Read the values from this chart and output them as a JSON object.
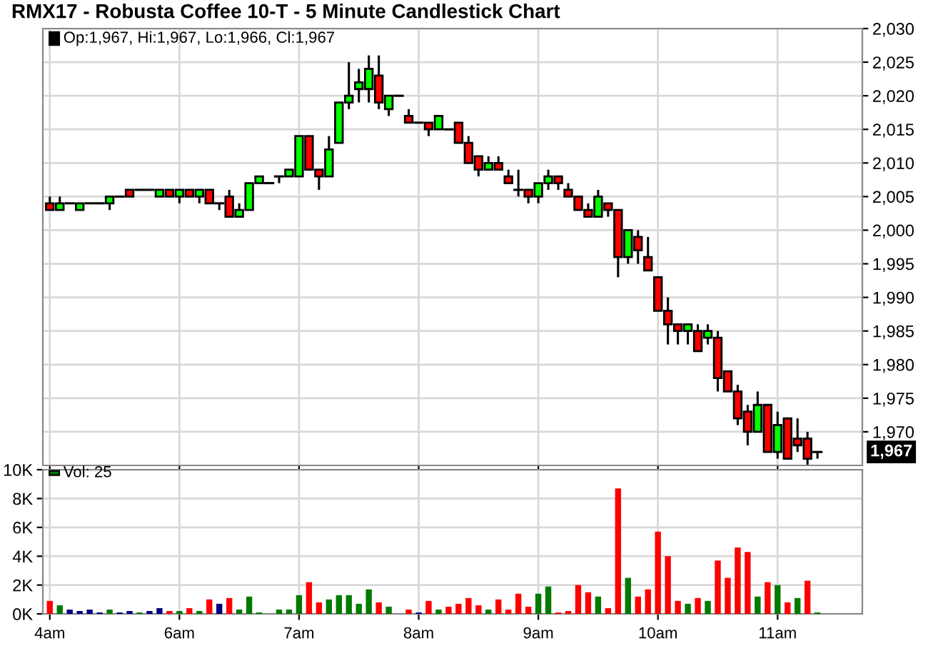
{
  "chart_data": [
    {
      "type": "candlestick",
      "title": "RMX17 - Robusta Coffee 10-T - 5 Minute Candlestick Chart",
      "categories": [
        null,
        null,
        null,
        null,
        null,
        null,
        null,
        null,
        null,
        null,
        null,
        null,
        null,
        null,
        null,
        null,
        null,
        null,
        null,
        null,
        null,
        null,
        null,
        null,
        null,
        null,
        null,
        null,
        null,
        null,
        null,
        null,
        null,
        null,
        null,
        null,
        null,
        null,
        null,
        null,
        null,
        null,
        null,
        null,
        null,
        null,
        null,
        null,
        null,
        null,
        null,
        null,
        null,
        null,
        null,
        null,
        null,
        null,
        null,
        null,
        null,
        null,
        null,
        null,
        null,
        null,
        null,
        null,
        null,
        null,
        null,
        null,
        null,
        null,
        null,
        null,
        null,
        null
      ],
      "ohlc": [
        [
          2004,
          2005,
          2003,
          2003
        ],
        [
          2003,
          2005,
          2003,
          2004
        ],
        [
          2004,
          2004,
          2004,
          2004
        ],
        [
          2003,
          2004,
          2003,
          2004
        ],
        [
          2004,
          2004,
          2004,
          2004
        ],
        [
          2004,
          2004,
          2004,
          2004
        ],
        [
          2004,
          2005,
          2003,
          2005
        ],
        [
          2005,
          2005,
          2005,
          2005
        ],
        [
          2006,
          2006,
          2005,
          2005
        ],
        [
          2006,
          2006,
          2006,
          2006
        ],
        [
          2006,
          2006,
          2006,
          2006
        ],
        [
          2005,
          2006,
          2005,
          2006
        ],
        [
          2006,
          2006,
          2005,
          2005
        ],
        [
          2005,
          2006,
          2004,
          2006
        ],
        [
          2006,
          2006,
          2005,
          2005
        ],
        [
          2005,
          2006,
          2004,
          2006
        ],
        [
          2006,
          2006,
          2004,
          2004
        ],
        [
          2004,
          2004,
          2003,
          2004
        ],
        [
          2005,
          2006,
          2002,
          2002
        ],
        [
          2002,
          2004,
          2002,
          2003
        ],
        [
          2003,
          2007,
          2003,
          2007
        ],
        [
          2007,
          2008,
          2007,
          2008
        ],
        [
          2007,
          2007,
          2007,
          2007
        ],
        [
          2008,
          2008,
          2007,
          2008
        ],
        [
          2008,
          2009,
          2008,
          2009
        ],
        [
          2008,
          2014,
          2008,
          2014
        ],
        [
          2014,
          2014,
          2009,
          2009
        ],
        [
          2009,
          2009,
          2006,
          2008
        ],
        [
          2008,
          2014,
          2008,
          2012
        ],
        [
          2013,
          2019,
          2013,
          2019
        ],
        [
          2019,
          2025,
          2018,
          2020
        ],
        [
          2021,
          2024,
          2019,
          2022
        ],
        [
          2021,
          2026,
          2019,
          2024
        ],
        [
          2023,
          2026,
          2018,
          2019
        ],
        [
          2018,
          2020,
          2017,
          2020
        ],
        [
          2020,
          2020,
          2020,
          2020
        ],
        [
          2017,
          2018,
          2016,
          2016
        ],
        [
          2016,
          2016,
          2016,
          2016
        ],
        [
          2016,
          2016,
          2014,
          2015
        ],
        [
          2015,
          2017,
          2015,
          2017
        ],
        [
          2015,
          2015,
          2015,
          2015
        ],
        [
          2016,
          2016,
          2013,
          2013
        ],
        [
          2013,
          2014,
          2010,
          2010
        ],
        [
          2011,
          2011,
          2008,
          2009
        ],
        [
          2009,
          2011,
          2009,
          2010
        ],
        [
          2010,
          2011,
          2009,
          2009
        ],
        [
          2008,
          2009,
          2007,
          2007
        ],
        [
          2006,
          2009,
          2005,
          2006
        ],
        [
          2006,
          2006,
          2004,
          2005
        ],
        [
          2005,
          2007,
          2004,
          2007
        ],
        [
          2007,
          2009,
          2006,
          2008
        ],
        [
          2008,
          2008,
          2006,
          2007
        ],
        [
          2006,
          2007,
          2005,
          2005
        ],
        [
          2005,
          2005,
          2003,
          2003
        ],
        [
          2003,
          2004,
          2002,
          2002
        ],
        [
          2002,
          2006,
          2002,
          2005
        ],
        [
          2004,
          2004,
          2002,
          2003
        ],
        [
          2003,
          2003,
          1993,
          1996
        ],
        [
          1996,
          2000,
          1995,
          2000
        ],
        [
          1999,
          2000,
          1995,
          1997
        ],
        [
          1996,
          1999,
          1994,
          1994
        ],
        [
          1993,
          1993,
          1988,
          1988
        ],
        [
          1988,
          1990,
          1983,
          1986
        ],
        [
          1986,
          1986,
          1983,
          1985
        ],
        [
          1985,
          1986,
          1983,
          1986
        ],
        [
          1985,
          1986,
          1982,
          1982
        ],
        [
          1984,
          1986,
          1983,
          1985
        ],
        [
          1984,
          1985,
          1976,
          1978
        ],
        [
          1979,
          1979,
          1976,
          1976
        ],
        [
          1976,
          1977,
          1971,
          1972
        ],
        [
          1973,
          1974,
          1968,
          1970
        ],
        [
          1970,
          1976,
          1970,
          1974
        ],
        [
          1974,
          1974,
          1967,
          1967
        ],
        [
          1967,
          1973,
          1966,
          1971
        ],
        [
          1972,
          1972,
          1966,
          1966
        ],
        [
          1969,
          1972,
          1967,
          1968
        ],
        [
          1969,
          1970,
          1965,
          1966
        ],
        [
          1967,
          1967,
          1966,
          1967
        ]
      ],
      "colors": [
        "#ff0000",
        "#00ff00",
        "#000000",
        "#00ff00",
        "#000000",
        "#000000",
        "#00ff00",
        "#000000",
        "#ff0000",
        "#000000",
        "#000000",
        "#00ff00",
        "#ff0000",
        "#00ff00",
        "#ff0000",
        "#00ff00",
        "#ff0000",
        "#000000",
        "#ff0000",
        "#00ff00",
        "#00ff00",
        "#00ff00",
        "#000000",
        "#000000",
        "#00ff00",
        "#00ff00",
        "#ff0000",
        "#ff0000",
        "#00ff00",
        "#00ff00",
        "#00ff00",
        "#00ff00",
        "#00ff00",
        "#ff0000",
        "#00ff00",
        "#000000",
        "#ff0000",
        "#000000",
        "#ff0000",
        "#00ff00",
        "#000000",
        "#ff0000",
        "#ff0000",
        "#ff0000",
        "#00ff00",
        "#ff0000",
        "#ff0000",
        "#000000",
        "#ff0000",
        "#00ff00",
        "#00ff00",
        "#ff0000",
        "#ff0000",
        "#ff0000",
        "#ff0000",
        "#00ff00",
        "#ff0000",
        "#ff0000",
        "#00ff00",
        "#ff0000",
        "#ff0000",
        "#ff0000",
        "#ff0000",
        "#ff0000",
        "#00ff00",
        "#ff0000",
        "#00ff00",
        "#ff0000",
        "#ff0000",
        "#ff0000",
        "#ff0000",
        "#00ff00",
        "#ff0000",
        "#00ff00",
        "#ff0000",
        "#ff0000",
        "#ff0000",
        "#000000"
      ],
      "ylim": [
        1965,
        2030
      ],
      "yticks": [
        {
          "value": 1970,
          "label": "1,970"
        },
        {
          "value": 1975,
          "label": "1,975"
        },
        {
          "value": 1980,
          "label": "1,980"
        },
        {
          "value": 1985,
          "label": "1,985"
        },
        {
          "value": 1990,
          "label": "1,990"
        },
        {
          "value": 1995,
          "label": "1,995"
        },
        {
          "value": 2000,
          "label": "2,000"
        },
        {
          "value": 2005,
          "label": "2,005"
        },
        {
          "value": 2010,
          "label": "2,010"
        },
        {
          "value": 2015,
          "label": "2,015"
        },
        {
          "value": 2020,
          "label": "2,020"
        },
        {
          "value": 2025,
          "label": "2,025"
        },
        {
          "value": 2030,
          "label": "2,030"
        }
      ],
      "tick_labels": "y",
      "grid": true,
      "annotations": [
        "Op:1,967, Hi:1,967, Lo:1,966, Cl:1,967",
        "1,967"
      ]
    },
    {
      "type": "bar",
      "categories": [
        "4am",
        null,
        null,
        null,
        null,
        null,
        null,
        null,
        null,
        null,
        null,
        null,
        null,
        "6am",
        null,
        null,
        null,
        null,
        null,
        null,
        null,
        null,
        null,
        null,
        null,
        "7am",
        null,
        null,
        null,
        null,
        null,
        null,
        null,
        null,
        null,
        null,
        null,
        "8am",
        null,
        null,
        null,
        null,
        null,
        null,
        null,
        null,
        null,
        null,
        null,
        "9am",
        null,
        null,
        null,
        null,
        null,
        null,
        null,
        null,
        null,
        null,
        null,
        "10am",
        null,
        null,
        null,
        null,
        null,
        null,
        null,
        null,
        null,
        null,
        null,
        "11am",
        null,
        null,
        null,
        null
      ],
      "values": [
        0.9,
        0.6,
        0.3,
        0.2,
        0.3,
        0.1,
        0.3,
        0.1,
        0.2,
        0.1,
        0.2,
        0.4,
        0.2,
        0.2,
        0.4,
        0.2,
        1.0,
        0.7,
        1.1,
        0.3,
        1.2,
        0.1,
        null,
        0.3,
        0.3,
        1.3,
        2.2,
        0.8,
        1.0,
        1.3,
        1.3,
        0.7,
        1.7,
        0.8,
        0.5,
        null,
        0.3,
        0.1,
        0.9,
        0.3,
        0.5,
        0.7,
        1.1,
        0.6,
        0.3,
        1.0,
        0.3,
        1.4,
        0.5,
        1.4,
        1.9,
        0.1,
        0.2,
        2.0,
        1.5,
        1.2,
        0.4,
        8.7,
        2.5,
        1.2,
        1.7,
        5.7,
        4.0,
        0.9,
        0.7,
        1.1,
        0.9,
        3.7,
        2.5,
        4.6,
        4.3,
        1.2,
        2.2,
        2.0,
        0.8,
        1.1,
        2.3,
        0.1
      ],
      "colors": [
        "#ff0000",
        "#007a00",
        "#000080",
        "#000080",
        "#000080",
        "#000080",
        "#007a00",
        "#000080",
        "#000080",
        "#007a00",
        "#000080",
        "#000080",
        "#ff0000",
        "#007a00",
        "#ff0000",
        "#007a00",
        "#ff0000",
        "#000080",
        "#ff0000",
        "#007a00",
        "#007a00",
        "#007a00",
        "#007a00",
        "#007a00",
        "#007a00",
        "#007a00",
        "#ff0000",
        "#ff0000",
        "#007a00",
        "#007a00",
        "#007a00",
        "#007a00",
        "#007a00",
        "#ff0000",
        "#007a00",
        "#007a00",
        "#ff0000",
        "#000080",
        "#ff0000",
        "#007a00",
        "#ff0000",
        "#ff0000",
        "#ff0000",
        "#ff0000",
        "#007a00",
        "#ff0000",
        "#ff0000",
        "#ff0000",
        "#ff0000",
        "#007a00",
        "#007a00",
        "#ff0000",
        "#ff0000",
        "#ff0000",
        "#ff0000",
        "#007a00",
        "#ff0000",
        "#ff0000",
        "#007a00",
        "#ff0000",
        "#ff0000",
        "#ff0000",
        "#ff0000",
        "#ff0000",
        "#007a00",
        "#ff0000",
        "#007a00",
        "#ff0000",
        "#ff0000",
        "#ff0000",
        "#ff0000",
        "#007a00",
        "#ff0000",
        "#007a00",
        "#ff0000",
        "#007a00",
        "#ff0000",
        "#007a00"
      ],
      "ylim": [
        0,
        10
      ],
      "yticks": [
        {
          "value": 0,
          "label": "0K"
        },
        {
          "value": 2,
          "label": "2K"
        },
        {
          "value": 4,
          "label": "4K"
        },
        {
          "value": 6,
          "label": "6K"
        },
        {
          "value": 8,
          "label": "8K"
        },
        {
          "value": 10,
          "label": "10K"
        }
      ],
      "grid": true,
      "annotations": [
        "Vol: 25"
      ]
    }
  ]
}
